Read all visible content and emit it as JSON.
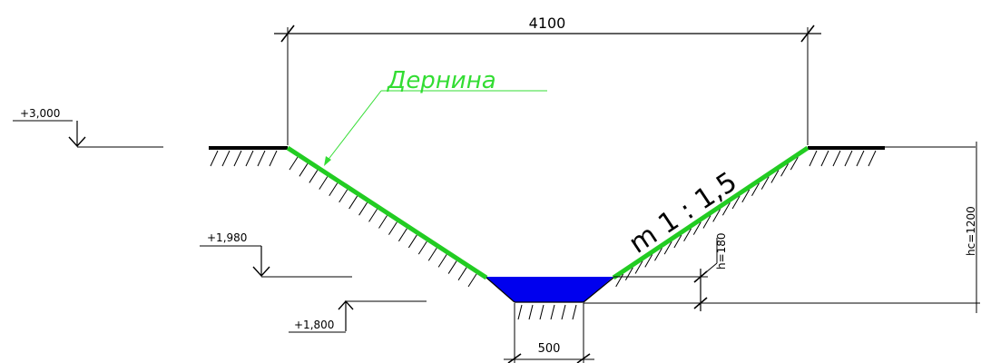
{
  "drawing": {
    "dimension_top": "4100",
    "dimension_bottom": "500",
    "turf_label": "Дернина",
    "slope_label": "m 1 : 1,5",
    "water_depth_label": "h=180",
    "ditch_depth_label": "hc=1200",
    "elevations": {
      "top": "+3,000",
      "water": "+1,980",
      "bottom": "+1,800"
    }
  },
  "colors": {
    "line": "#000000",
    "turf_slope": "#22cc22",
    "turf_label": "#33dd33",
    "water": "#0000ee"
  }
}
